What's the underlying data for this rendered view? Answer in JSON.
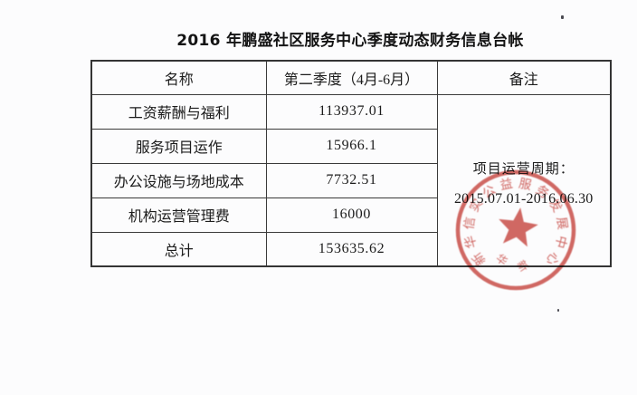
{
  "document": {
    "title": "2016 年鹏盛社区服务中心季度动态财务信息台帐"
  },
  "table": {
    "headers": {
      "name": "名称",
      "period": "第二季度（4月-6月）",
      "remarks": "备注"
    },
    "rows": [
      {
        "name": "工资薪酬与福利",
        "value": "113937.01"
      },
      {
        "name": "服务项目运作",
        "value": "15966.1"
      },
      {
        "name": "办公设施与场地成本",
        "value": "7732.51"
      },
      {
        "name": "机构运营管理费",
        "value": "16000"
      },
      {
        "name": "总计",
        "value": "153635.62"
      }
    ],
    "remarks": {
      "line1": "项目运营周期：",
      "line2": "2015.07.01-2016.06.30"
    }
  },
  "stamp": {
    "ring_text": "新华信实公益服务发展中心",
    "bottom_text": "华新",
    "center_icon": "star-icon",
    "color": "#c94842"
  }
}
